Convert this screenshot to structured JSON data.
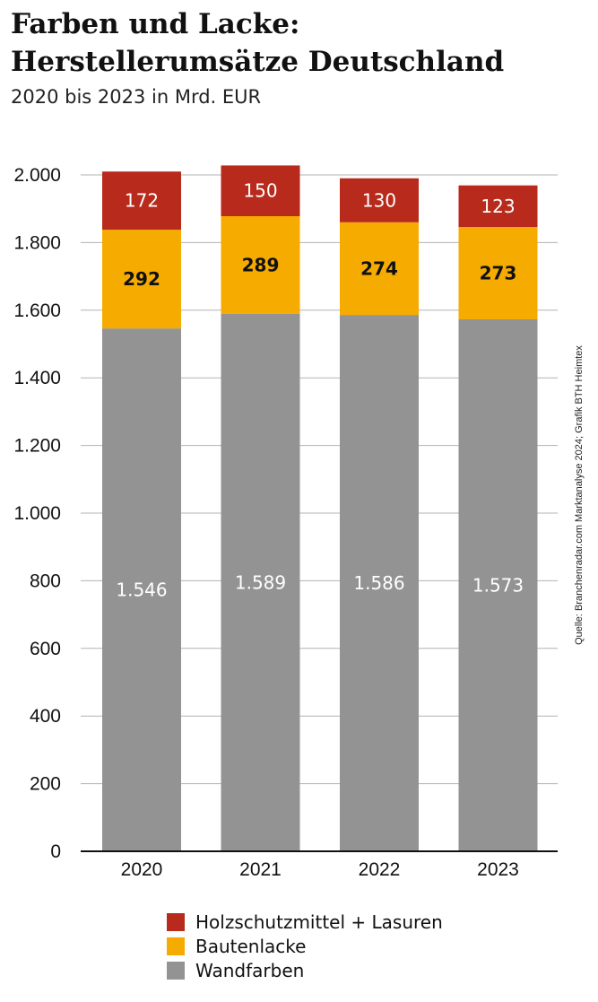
{
  "chart_data": {
    "type": "bar",
    "stacked": true,
    "title": "Farben und Lacke: Herstellerumsätze Deutschland",
    "title_lines": [
      "Farben und Lacke:",
      "Herstellerumsätze Deutschland"
    ],
    "subtitle": "2020 bis 2023 in Mrd. EUR",
    "categories": [
      "2020",
      "2021",
      "2022",
      "2023"
    ],
    "series": [
      {
        "name": "Wandfarben",
        "color": "#939393",
        "label_color": "#ffffff",
        "values": [
          1546,
          1589,
          1586,
          1573
        ],
        "labels": [
          "1.546",
          "1.589",
          "1.586",
          "1.573"
        ]
      },
      {
        "name": "Bautenlacke",
        "color": "#F5AB00",
        "label_color": "#111111",
        "values": [
          292,
          289,
          274,
          273
        ],
        "labels": [
          "292",
          "289",
          "274",
          "273"
        ]
      },
      {
        "name": "Holzschutzmittel + Lasuren",
        "color": "#B82A1C",
        "label_color": "#ffffff",
        "values": [
          172,
          150,
          130,
          123
        ],
        "labels": [
          "172",
          "150",
          "130",
          "123"
        ]
      }
    ],
    "ylim": [
      0,
      2000
    ],
    "yticks": [
      0,
      200,
      400,
      600,
      800,
      1000,
      1200,
      1400,
      1600,
      1800,
      2000
    ],
    "ytick_labels": [
      "0",
      "200",
      "400",
      "600",
      "800",
      "1.000",
      "1.200",
      "1.400",
      "1.600",
      "1.800",
      "2.000"
    ],
    "xlabel": "",
    "ylabel": "",
    "grid": true,
    "legend_position": "bottom",
    "legend_order": [
      "Holzschutzmittel + Lasuren",
      "Bautenlacke",
      "Wandfarben"
    ]
  },
  "source_note": "Quelle: Branchenradar.com Marktanalyse 2024; Grafik BTH Heimtex"
}
